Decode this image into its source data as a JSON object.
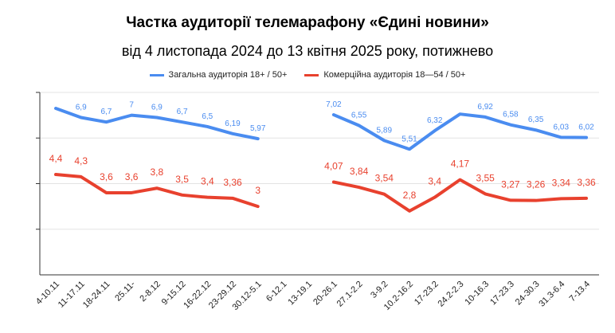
{
  "chart_data": {
    "type": "line",
    "title": "Частка аудиторії телемарафону «Єдині новини»",
    "subtitle": "від 4 листопада 2024 до 13 квітня 2025 року, потижнево",
    "categories": [
      "4-10.11",
      "11-17.11",
      "18-24.11",
      "25.11-",
      "2-8.12",
      "9-15.12",
      "16-22.12",
      "23-29.12",
      "30.12-5.1",
      "6-12.1",
      "13-19.1",
      "20-26.1",
      "27.1-2.2",
      "3-9.2",
      "10.2-16.2",
      "17-23.2",
      "24.2-2.3",
      "10-16.3",
      "17-23.3",
      "24-30.3",
      "31.3-6.4",
      "7-13.4"
    ],
    "series": [
      {
        "name": "Загальна аудиторія 18+ / 50+",
        "color": "#4A8CF0",
        "values": [
          7.3,
          6.9,
          6.7,
          7,
          6.9,
          6.7,
          6.5,
          6.19,
          5.97,
          null,
          null,
          7.02,
          6.55,
          5.89,
          5.51,
          6.32,
          7.05,
          6.92,
          6.58,
          6.35,
          6.03,
          6.02
        ],
        "labels": [
          "",
          "6,9",
          "6,7",
          "7",
          "6,9",
          "6,7",
          "6,5",
          "6,19",
          "5,97",
          "",
          "",
          "7,02",
          "6,55",
          "5,89",
          "5,51",
          "6,32",
          "",
          "6,92",
          "6,58",
          "6,35",
          "6,03",
          "6,02"
        ]
      },
      {
        "name": "Комерційна аудиторія 18—54 / 50+",
        "color": "#E8412E",
        "values": [
          4.4,
          4.3,
          3.6,
          3.6,
          3.8,
          3.5,
          3.4,
          3.36,
          3,
          null,
          null,
          4.07,
          3.84,
          3.54,
          2.8,
          3.4,
          4.17,
          3.55,
          3.27,
          3.26,
          3.34,
          3.36
        ],
        "labels": [
          "4,4",
          "4,3",
          "3,6",
          "3,6",
          "3,8",
          "3,5",
          "3,4",
          "3,36",
          "3",
          "",
          "",
          "4,07",
          "3,84",
          "3,54",
          "2,8",
          "3,4",
          "4,17",
          "3,55",
          "3,27",
          "3,26",
          "3,34",
          "3,36"
        ]
      }
    ],
    "ylim": [
      0,
      8
    ],
    "grid": true,
    "legend": "top-center"
  }
}
